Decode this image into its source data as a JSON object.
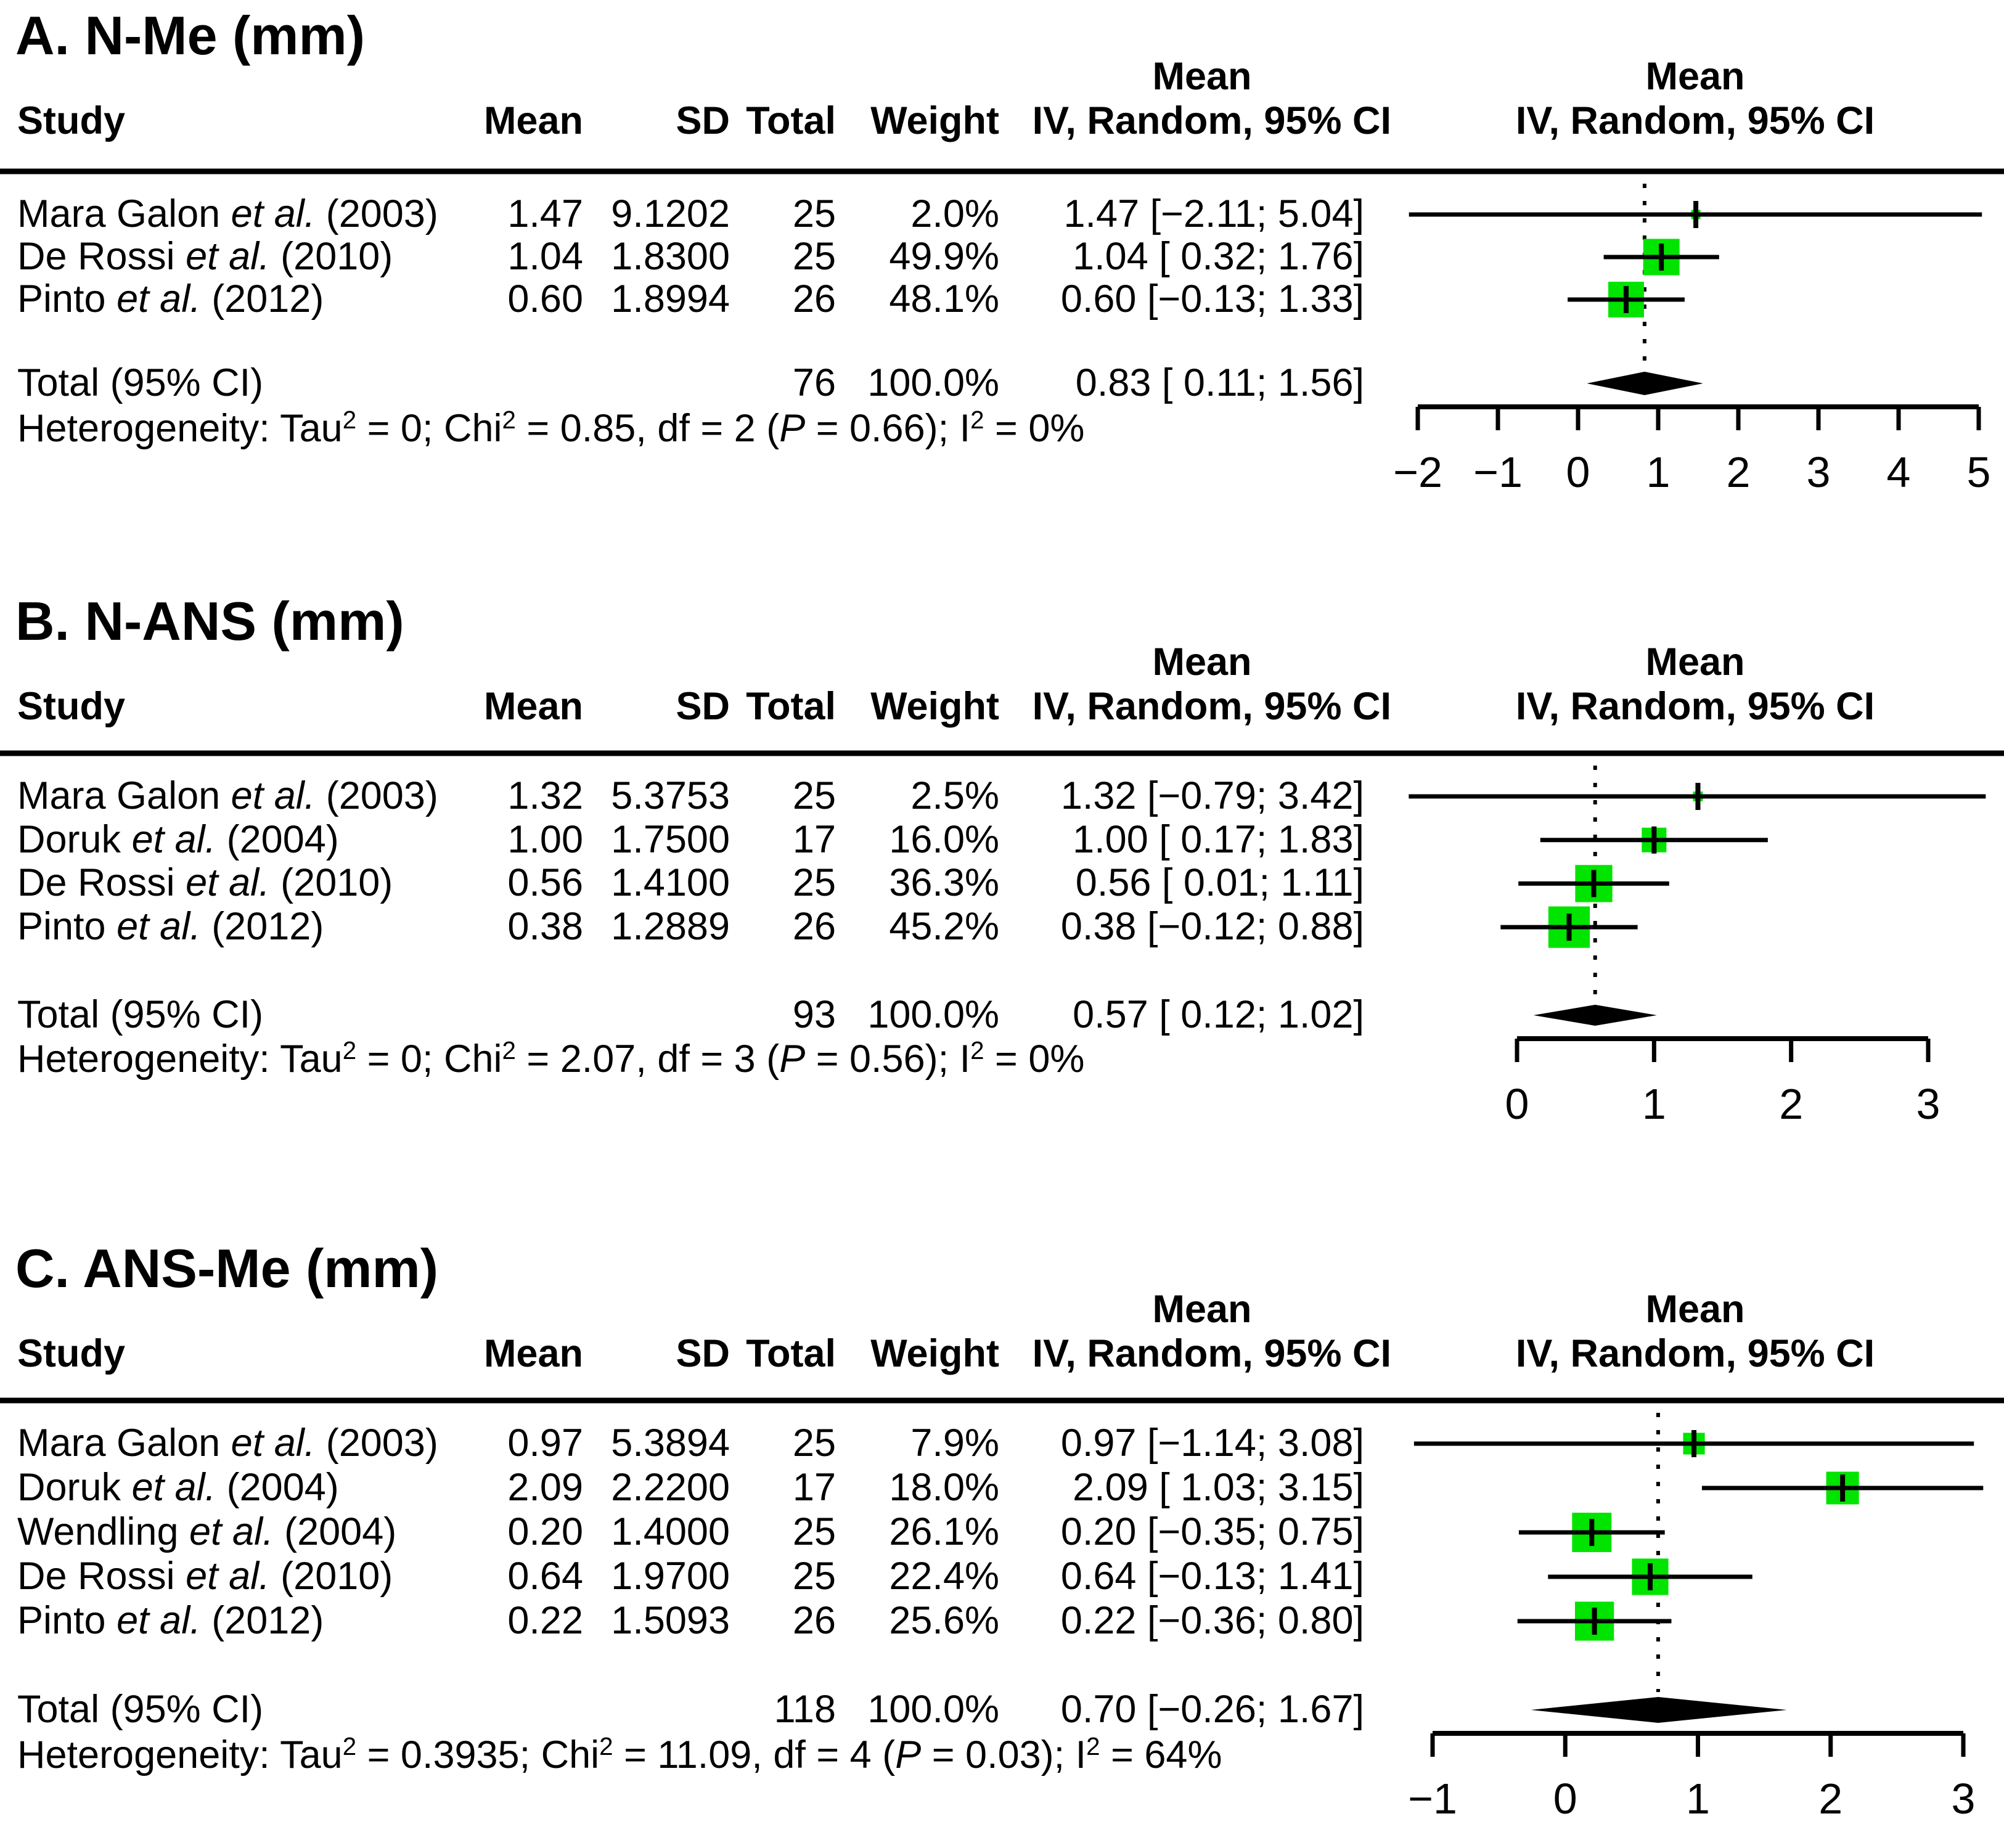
{
  "figure_title": "Forest plots of meta-analysis (three panels)",
  "colors": {
    "square_fill": "#00e400",
    "line": "#000000",
    "diamond_fill": "#000000",
    "background": "#ffffff"
  },
  "headers": {
    "study": "Study",
    "mean": "Mean",
    "sd": "SD",
    "total": "Total",
    "weight": "Weight",
    "effect_top": "Mean",
    "effect": "IV, Random, 95% CI",
    "plot_top": "Mean",
    "plot": "IV, Random, 95% CI"
  },
  "chart_data": [
    {
      "type": "forest",
      "title": "A. N-Me (mm)",
      "effect_measure": "Mean difference, IV Random 95% CI",
      "studies": [
        {
          "label": "Mara Galon et al. (2003)",
          "mean": "1.47",
          "sd": "9.1202",
          "total": "25",
          "weight": "2.0%",
          "effect": "1.47 [−2.11; 5.04]",
          "est": 1.47,
          "lo": -2.11,
          "hi": 5.04,
          "weight_pct": 2.0
        },
        {
          "label": "De Rossi et al. (2010)",
          "mean": "1.04",
          "sd": "1.8300",
          "total": "25",
          "weight": "49.9%",
          "effect": "1.04 [ 0.32; 1.76]",
          "est": 1.04,
          "lo": 0.32,
          "hi": 1.76,
          "weight_pct": 49.9
        },
        {
          "label": "Pinto et al. (2012)",
          "mean": "0.60",
          "sd": "1.8994",
          "total": "26",
          "weight": "48.1%",
          "effect": "0.60 [−0.13; 1.33]",
          "est": 0.6,
          "lo": -0.13,
          "hi": 1.33,
          "weight_pct": 48.1
        }
      ],
      "total": {
        "label": "Total (95% CI)",
        "total": "76",
        "weight": "100.0%",
        "effect": "0.83 [ 0.11; 1.56]",
        "est": 0.83,
        "lo": 0.11,
        "hi": 1.56
      },
      "heterogeneity": "Heterogeneity: Tau² = 0; Chi² = 0.85, df = 2 (P = 0.66); I² = 0%",
      "axis": {
        "ticks": [
          -2,
          -1,
          0,
          1,
          2,
          3,
          4,
          5
        ],
        "xlim": [
          -2,
          5
        ],
        "grid": false
      }
    },
    {
      "type": "forest",
      "title": "B. N-ANS (mm)",
      "effect_measure": "Mean difference, IV Random 95% CI",
      "studies": [
        {
          "label": "Mara Galon et al. (2003)",
          "mean": "1.32",
          "sd": "5.3753",
          "total": "25",
          "weight": "2.5%",
          "effect": "1.32 [−0.79; 3.42]",
          "est": 1.32,
          "lo": -0.79,
          "hi": 3.42,
          "weight_pct": 2.5
        },
        {
          "label": "Doruk et al. (2004)",
          "mean": "1.00",
          "sd": "1.7500",
          "total": "17",
          "weight": "16.0%",
          "effect": "1.00 [ 0.17; 1.83]",
          "est": 1.0,
          "lo": 0.17,
          "hi": 1.83,
          "weight_pct": 16.0
        },
        {
          "label": "De Rossi et al. (2010)",
          "mean": "0.56",
          "sd": "1.4100",
          "total": "25",
          "weight": "36.3%",
          "effect": "0.56 [ 0.01; 1.11]",
          "est": 0.56,
          "lo": 0.01,
          "hi": 1.11,
          "weight_pct": 36.3
        },
        {
          "label": "Pinto et al. (2012)",
          "mean": "0.38",
          "sd": "1.2889",
          "total": "26",
          "weight": "45.2%",
          "effect": "0.38 [−0.12; 0.88]",
          "est": 0.38,
          "lo": -0.12,
          "hi": 0.88,
          "weight_pct": 45.2
        }
      ],
      "total": {
        "label": "Total (95% CI)",
        "total": "93",
        "weight": "100.0%",
        "effect": "0.57 [ 0.12; 1.02]",
        "est": 0.57,
        "lo": 0.12,
        "hi": 1.02
      },
      "heterogeneity": "Heterogeneity: Tau² = 0; Chi² = 2.07, df = 3 (P = 0.56); I² = 0%",
      "axis": {
        "ticks": [
          0,
          1,
          2,
          3
        ],
        "xlim": [
          0,
          3
        ],
        "grid": false
      }
    },
    {
      "type": "forest",
      "title": "C. ANS-Me (mm)",
      "effect_measure": "Mean difference, IV Random 95% CI",
      "studies": [
        {
          "label": "Mara Galon et al. (2003)",
          "mean": "0.97",
          "sd": "5.3894",
          "total": "25",
          "weight": "7.9%",
          "effect": "0.97 [−1.14; 3.08]",
          "est": 0.97,
          "lo": -1.14,
          "hi": 3.08,
          "weight_pct": 7.9
        },
        {
          "label": "Doruk et al. (2004)",
          "mean": "2.09",
          "sd": "2.2200",
          "total": "17",
          "weight": "18.0%",
          "effect": "2.09 [ 1.03; 3.15]",
          "est": 2.09,
          "lo": 1.03,
          "hi": 3.15,
          "weight_pct": 18.0
        },
        {
          "label": "Wendling et al. (2004)",
          "mean": "0.20",
          "sd": "1.4000",
          "total": "25",
          "weight": "26.1%",
          "effect": "0.20 [−0.35; 0.75]",
          "est": 0.2,
          "lo": -0.35,
          "hi": 0.75,
          "weight_pct": 26.1
        },
        {
          "label": "De Rossi et al. (2010)",
          "mean": "0.64",
          "sd": "1.9700",
          "total": "25",
          "weight": "22.4%",
          "effect": "0.64 [−0.13; 1.41]",
          "est": 0.64,
          "lo": -0.13,
          "hi": 1.41,
          "weight_pct": 22.4
        },
        {
          "label": "Pinto et al. (2012)",
          "mean": "0.22",
          "sd": "1.5093",
          "total": "26",
          "weight": "25.6%",
          "effect": "0.22 [−0.36; 0.80]",
          "est": 0.22,
          "lo": -0.36,
          "hi": 0.8,
          "weight_pct": 25.6
        }
      ],
      "total": {
        "label": "Total (95% CI)",
        "total": "118",
        "weight": "100.0%",
        "effect": "0.70 [−0.26; 1.67]",
        "est": 0.7,
        "lo": -0.26,
        "hi": 1.67
      },
      "heterogeneity": "Heterogeneity: Tau² = 0.3935; Chi² = 11.09, df = 4 (P = 0.03); I² = 64%",
      "axis": {
        "ticks": [
          -1,
          0,
          1,
          2,
          3
        ],
        "xlim": [
          -1,
          3
        ],
        "grid": false
      }
    }
  ]
}
